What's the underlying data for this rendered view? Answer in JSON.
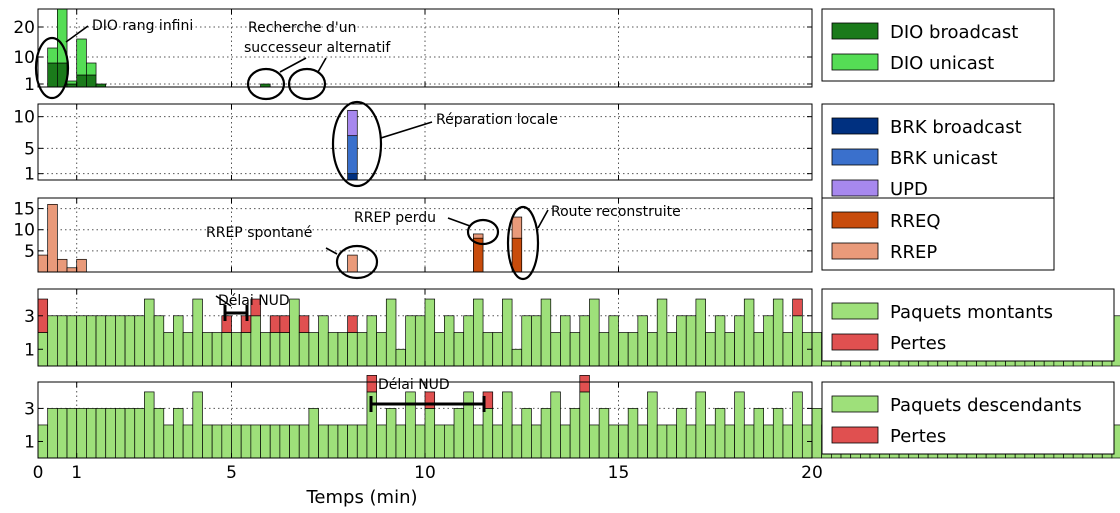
{
  "chart_data": {
    "type": "bar",
    "xlabel": "Temps (min)",
    "xlim": [
      0,
      20
    ],
    "xticks": [
      0,
      1,
      5,
      10,
      15,
      20
    ],
    "bin_minutes": 0.25,
    "grid": true,
    "legend_placement": "right",
    "panels": [
      {
        "id": "dio",
        "ylim": [
          0,
          26
        ],
        "yticks": [
          1,
          10,
          20
        ],
        "series": [
          {
            "name": "DIO broadcast",
            "color": "#1a7a1a",
            "values": [
              0,
              8,
              8,
              1,
              4,
              4,
              1,
              0,
              0,
              0,
              0,
              0,
              0,
              0,
              0,
              0,
              0,
              0,
              0,
              0,
              0,
              0,
              0,
              1,
              0,
              0,
              0,
              0,
              0,
              0,
              0,
              0
            ]
          },
          {
            "name": "DIO unicast",
            "color": "#55dd55",
            "values": [
              0,
              5,
              18,
              1,
              12,
              4,
              0,
              0,
              0,
              0,
              0,
              0,
              0,
              0,
              0,
              0,
              0,
              0,
              0,
              0,
              0,
              0,
              0,
              0,
              0,
              0,
              0,
              0,
              0,
              0,
              0,
              0
            ]
          }
        ],
        "annotations": [
          {
            "text": "DIO rang infini"
          },
          {
            "text": "Recherche d'un",
            "text2": "successeur alternatif"
          }
        ]
      },
      {
        "id": "brk",
        "ylim": [
          0,
          12
        ],
        "yticks": [
          1,
          5,
          10
        ],
        "series": [
          {
            "name": "BRK broadcast",
            "color": "#003080",
            "offset": 32,
            "values": [
              1
            ]
          },
          {
            "name": "BRK unicast",
            "color": "#3a70cc",
            "offset": 32,
            "values": [
              6
            ]
          },
          {
            "name": "UPD",
            "color": "#a788ee",
            "offset": 32,
            "values": [
              4
            ]
          }
        ],
        "annotations": [
          {
            "text": "Réparation locale"
          }
        ]
      },
      {
        "id": "rrep",
        "ylim": [
          0,
          17.5
        ],
        "yticks": [
          5,
          10,
          15
        ],
        "series": [
          {
            "name": "RREQ",
            "color": "#c84c0c",
            "values": [
              0,
              0,
              0,
              0,
              0,
              0,
              0,
              0,
              0,
              0,
              0,
              0,
              0,
              0,
              0,
              0,
              0,
              0,
              0,
              0,
              0,
              0,
              0,
              0,
              0,
              0,
              0,
              0,
              0,
              0,
              0,
              0,
              0,
              0,
              0,
              0,
              0,
              0,
              0,
              0,
              0,
              0,
              0,
              0,
              0,
              8,
              0,
              0,
              0,
              8,
              0,
              0
            ]
          },
          {
            "name": "RREP",
            "color": "#e99a7a",
            "values": [
              4,
              16,
              3,
              1,
              3,
              0,
              0,
              0,
              0,
              0,
              0,
              0,
              0,
              0,
              0,
              0,
              0,
              0,
              0,
              0,
              0,
              0,
              0,
              0,
              0,
              0,
              0,
              0,
              0,
              0,
              0,
              0,
              4,
              0,
              0,
              0,
              0,
              0,
              0,
              0,
              0,
              0,
              0,
              0,
              0,
              1,
              0,
              0,
              0,
              5,
              0,
              0
            ]
          }
        ],
        "annotations": [
          {
            "text": "RREP spontané"
          },
          {
            "text": "RREP perdu"
          },
          {
            "text": "Route reconstruite"
          }
        ]
      },
      {
        "id": "up",
        "ylim": [
          0,
          4.6
        ],
        "yticks": [
          1,
          3
        ],
        "series": [
          {
            "name": "Paquets montants",
            "color": "#9ee07a",
            "values": [
              2,
              3,
              3,
              3,
              3,
              3,
              3,
              3,
              3,
              3,
              3,
              4,
              3,
              2,
              3,
              2,
              4,
              2,
              2,
              2,
              2,
              2,
              3,
              2,
              2,
              2,
              4,
              2,
              2,
              3,
              2,
              2,
              2,
              2,
              3,
              2,
              4,
              1,
              3,
              3,
              4,
              2,
              3,
              2,
              3,
              4,
              2,
              2,
              4,
              1,
              3,
              3,
              4,
              2,
              3,
              2,
              3,
              4,
              2,
              3,
              2,
              2,
              3,
              2,
              4,
              2,
              3,
              3,
              4,
              2,
              3,
              2,
              3,
              4,
              2,
              3,
              4,
              2,
              3,
              2,
              2,
              2,
              2,
              3,
              2,
              4,
              2,
              3,
              2,
              2,
              3,
              2,
              4,
              2,
              3,
              3,
              4,
              2,
              3,
              3,
              2,
              2,
              2,
              3,
              2,
              4,
              2,
              3,
              3,
              4,
              2,
              3,
              2
            ]
          },
          {
            "name": "Pertes",
            "color": "#e05050",
            "values": [
              2,
              0,
              0,
              0,
              0,
              0,
              0,
              0,
              0,
              0,
              0,
              0,
              0,
              0,
              0,
              0,
              0,
              0,
              0,
              1,
              0,
              1,
              1,
              0,
              1,
              1,
              0,
              1,
              0,
              0,
              0,
              0,
              1,
              0,
              0,
              0,
              0,
              0,
              0,
              0,
              0,
              0,
              0,
              0,
              0,
              0,
              0,
              0,
              0,
              0,
              0,
              0,
              0,
              0,
              0,
              0,
              0,
              0,
              0,
              0,
              0,
              0,
              0,
              0,
              0,
              0,
              0,
              0,
              0,
              0,
              0,
              0,
              0,
              0,
              0,
              0,
              0,
              0,
              1,
              0,
              0,
              0,
              0,
              0,
              0,
              0,
              0,
              0,
              0,
              0,
              0,
              0,
              0,
              0,
              0,
              0,
              0,
              0,
              0,
              0,
              0,
              0,
              0,
              0,
              0,
              0,
              0,
              0,
              0,
              0,
              0,
              0,
              0
            ]
          }
        ],
        "annotations": [
          {
            "text": "Délai NUD"
          }
        ]
      },
      {
        "id": "down",
        "ylim": [
          0,
          4.6
        ],
        "yticks": [
          1,
          3
        ],
        "series": [
          {
            "name": "Paquets descendants",
            "color": "#9ee07a",
            "values": [
              2,
              3,
              3,
              3,
              3,
              3,
              3,
              3,
              3,
              3,
              3,
              4,
              3,
              2,
              3,
              2,
              4,
              2,
              2,
              2,
              2,
              2,
              2,
              2,
              2,
              2,
              2,
              2,
              3,
              2,
              2,
              2,
              2,
              2,
              4,
              2,
              3,
              2,
              4,
              2,
              3,
              2,
              2,
              3,
              4,
              2,
              3,
              2,
              4,
              2,
              3,
              2,
              3,
              4,
              2,
              3,
              4,
              2,
              3,
              2,
              2,
              3,
              2,
              4,
              2,
              2,
              3,
              2,
              4,
              2,
              3,
              2,
              4,
              2,
              3,
              2,
              3,
              2,
              4,
              2,
              3,
              2,
              3,
              4,
              2,
              3,
              2,
              2,
              3,
              2,
              2,
              4,
              2,
              3,
              2,
              2,
              3,
              2,
              4,
              2,
              3,
              2,
              4,
              2,
              3,
              2,
              3,
              2,
              4,
              2,
              3,
              2,
              2
            ]
          },
          {
            "name": "Pertes",
            "color": "#e05050",
            "values": [
              0,
              0,
              0,
              0,
              0,
              0,
              0,
              0,
              0,
              0,
              0,
              0,
              0,
              0,
              0,
              0,
              0,
              0,
              0,
              0,
              0,
              0,
              0,
              0,
              0,
              0,
              0,
              0,
              0,
              0,
              0,
              0,
              0,
              0,
              1,
              0,
              0,
              0,
              0,
              0,
              1,
              0,
              0,
              0,
              0,
              0,
              1,
              0,
              0,
              0,
              0,
              0,
              0,
              0,
              0,
              0,
              1,
              0,
              0,
              0,
              0,
              0,
              0,
              0,
              0,
              0,
              0,
              0,
              0,
              0,
              0,
              0,
              0,
              0,
              0,
              0,
              0,
              0,
              0,
              0,
              0,
              0,
              0,
              0,
              0,
              0,
              0,
              0,
              0,
              0,
              0,
              0,
              0,
              0,
              0,
              0,
              0,
              0,
              0,
              0,
              0,
              0,
              0,
              0,
              0,
              0,
              0,
              0,
              0,
              0,
              0,
              0,
              0
            ]
          }
        ],
        "annotations": [
          {
            "text": "Délai NUD"
          }
        ]
      }
    ]
  }
}
